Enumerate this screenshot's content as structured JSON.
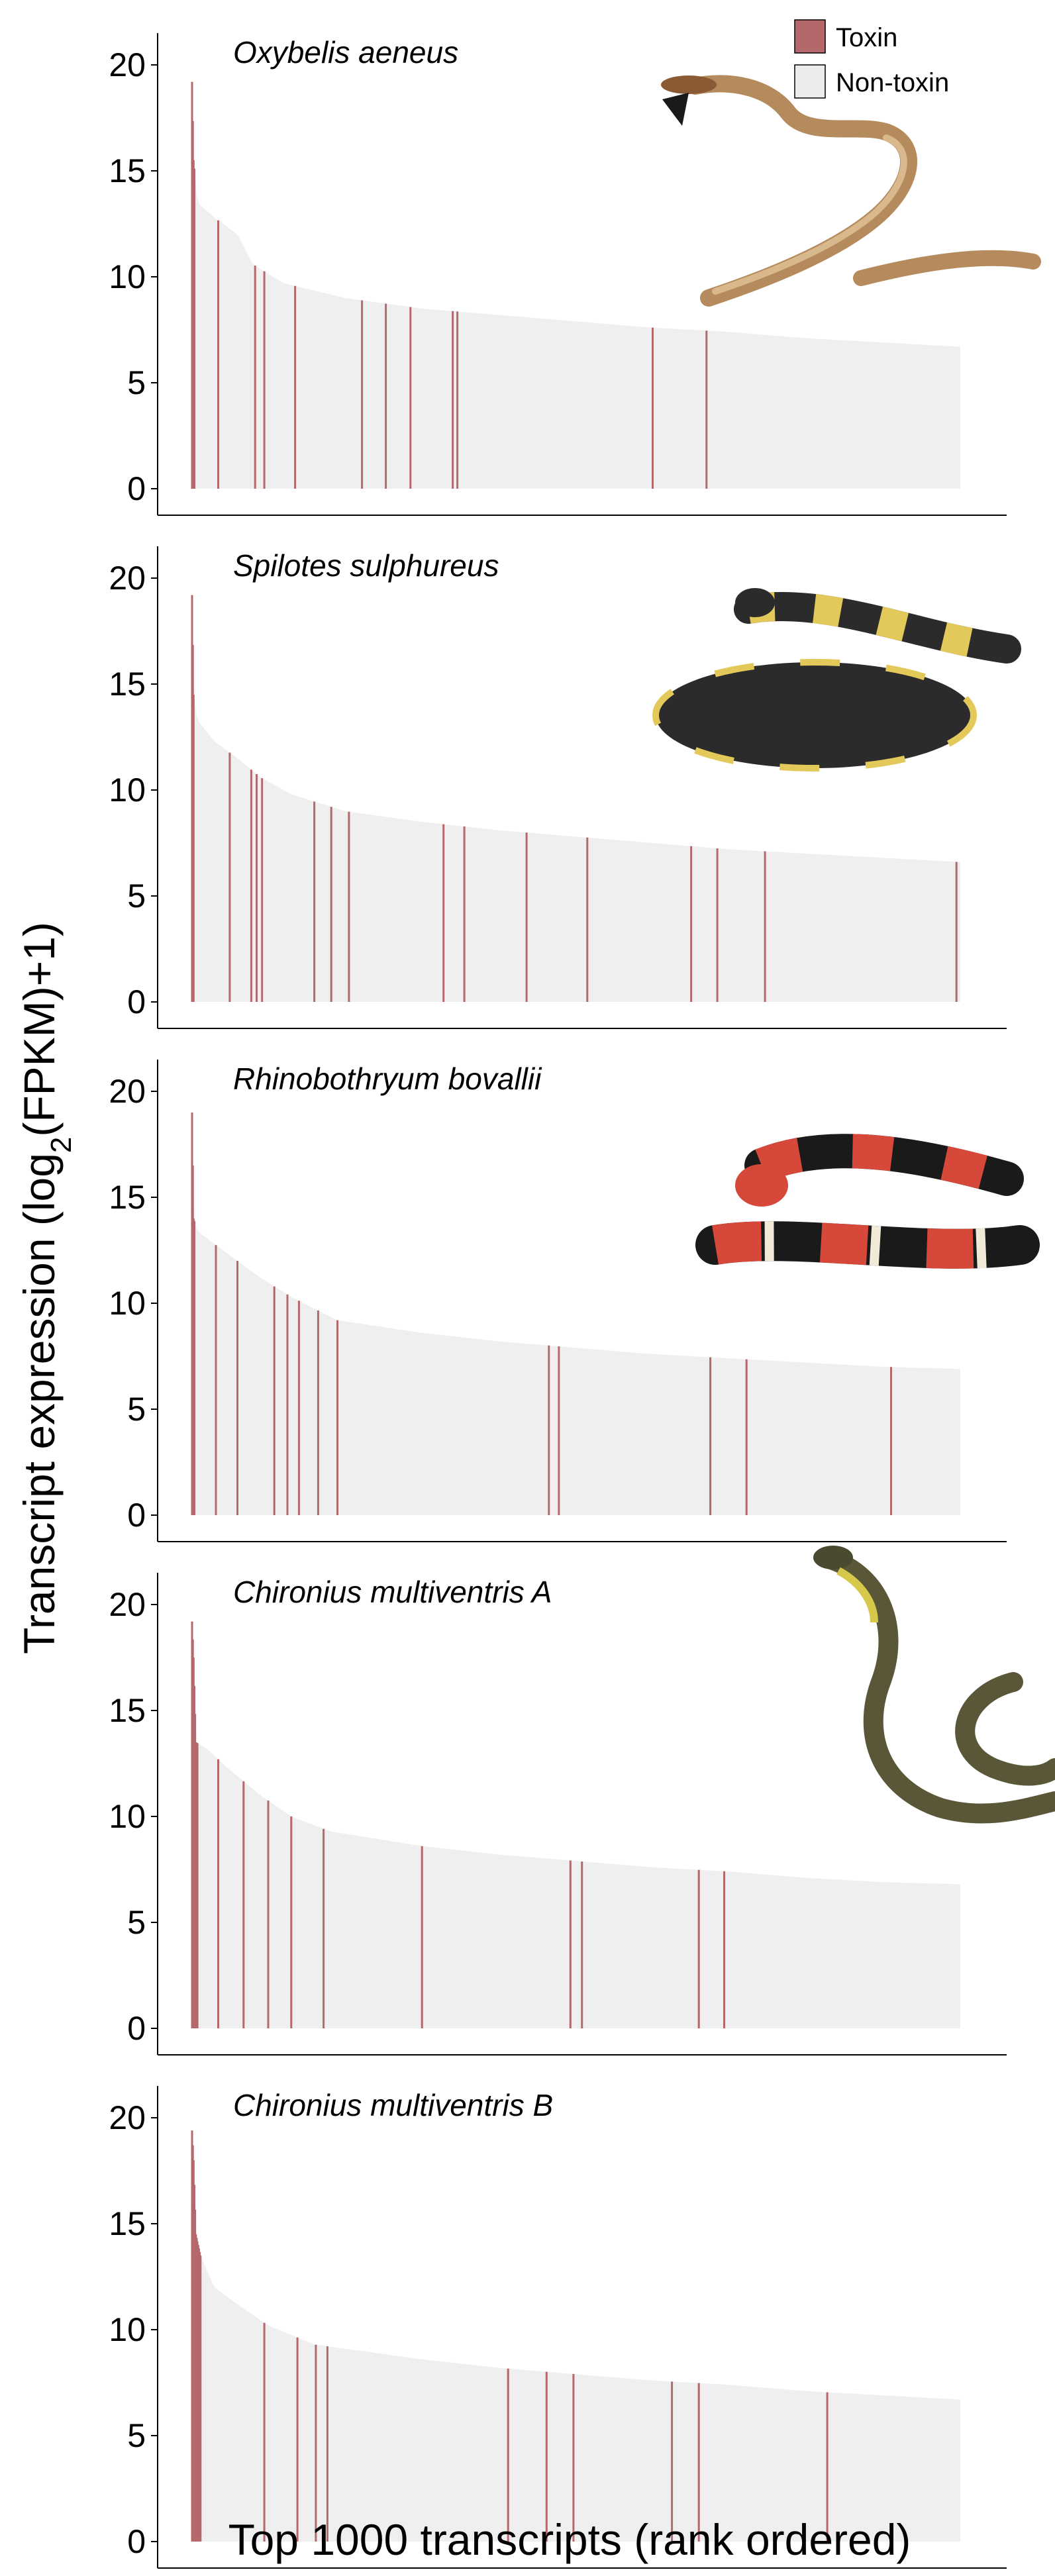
{
  "figure": {
    "ylabel_main": "Transcript expression (log",
    "ylabel_sub": "2",
    "ylabel_tail": "(FPKM)+1)",
    "xlabel": "Top 1000 transcripts (rank ordered)"
  },
  "legend": [
    {
      "label": "Toxin",
      "color": "#b5686b"
    },
    {
      "label": "Non-toxin",
      "color": "#ececec"
    }
  ],
  "colors": {
    "toxin": "#b5686b",
    "nontoxin": "#efefef",
    "axis": "#000000"
  },
  "chart_data": [
    {
      "type": "bar",
      "title": "Oxybelis aeneus",
      "photo_icon": "snake-photo-oxybelis",
      "x": [
        1,
        1000
      ],
      "ylim": [
        0,
        20
      ],
      "yticks": [
        "0",
        "5",
        "10",
        "15",
        "20"
      ],
      "curve": [
        [
          1,
          19.2
        ],
        [
          3,
          15.5
        ],
        [
          8,
          13.5
        ],
        [
          30,
          12.8
        ],
        [
          60,
          12.0
        ],
        [
          80,
          10.6
        ],
        [
          120,
          9.7
        ],
        [
          200,
          9.0
        ],
        [
          300,
          8.5
        ],
        [
          400,
          8.2
        ],
        [
          500,
          7.9
        ],
        [
          600,
          7.6
        ],
        [
          700,
          7.4
        ],
        [
          800,
          7.1
        ],
        [
          900,
          6.9
        ],
        [
          1000,
          6.7
        ]
      ],
      "toxin_ranks": [
        1,
        2,
        3,
        4,
        35,
        83,
        95,
        135,
        222,
        253,
        285,
        340,
        346,
        600,
        670
      ]
    },
    {
      "type": "bar",
      "title": "Spilotes sulphureus",
      "photo_icon": "snake-photo-spilotes",
      "x": [
        1,
        1000
      ],
      "ylim": [
        0,
        20
      ],
      "yticks": [
        "0",
        "5",
        "10",
        "15",
        "20"
      ],
      "curve": [
        [
          1,
          19.2
        ],
        [
          3,
          14.5
        ],
        [
          8,
          13.3
        ],
        [
          30,
          12.3
        ],
        [
          60,
          11.5
        ],
        [
          90,
          10.6
        ],
        [
          130,
          9.8
        ],
        [
          200,
          9.0
        ],
        [
          300,
          8.5
        ],
        [
          400,
          8.1
        ],
        [
          500,
          7.8
        ],
        [
          600,
          7.5
        ],
        [
          700,
          7.2
        ],
        [
          800,
          7.0
        ],
        [
          900,
          6.8
        ],
        [
          1000,
          6.6
        ]
      ],
      "toxin_ranks": [
        1,
        2,
        3,
        50,
        78,
        85,
        92,
        160,
        182,
        205,
        328,
        355,
        436,
        515,
        650,
        684,
        746,
        995
      ]
    },
    {
      "type": "bar",
      "title": "Rhinobothryum bovallii",
      "photo_icon": "snake-photo-rhinobothryum",
      "x": [
        1,
        1000
      ],
      "ylim": [
        0,
        20
      ],
      "yticks": [
        "0",
        "5",
        "10",
        "15",
        "20"
      ],
      "curve": [
        [
          1,
          19.0
        ],
        [
          3,
          14.0
        ],
        [
          8,
          13.4
        ],
        [
          30,
          12.8
        ],
        [
          60,
          12.0
        ],
        [
          90,
          11.2
        ],
        [
          130,
          10.3
        ],
        [
          190,
          9.2
        ],
        [
          300,
          8.6
        ],
        [
          400,
          8.2
        ],
        [
          500,
          7.9
        ],
        [
          600,
          7.6
        ],
        [
          700,
          7.4
        ],
        [
          800,
          7.2
        ],
        [
          900,
          7.0
        ],
        [
          1000,
          6.9
        ]
      ],
      "toxin_ranks": [
        1,
        2,
        3,
        4,
        32,
        60,
        108,
        125,
        140,
        165,
        190,
        465,
        478,
        675,
        722,
        910
      ]
    },
    {
      "type": "bar",
      "title": "Chironius multiventris A",
      "photo_icon": "snake-photo-chironius",
      "x": [
        1,
        1000
      ],
      "ylim": [
        0,
        20
      ],
      "yticks": [
        "0",
        "5",
        "10",
        "15",
        "20"
      ],
      "curve": [
        [
          1,
          19.2
        ],
        [
          3,
          17.5
        ],
        [
          6,
          13.5
        ],
        [
          20,
          13.2
        ],
        [
          50,
          12.2
        ],
        [
          90,
          11.0
        ],
        [
          130,
          10.0
        ],
        [
          180,
          9.3
        ],
        [
          300,
          8.6
        ],
        [
          400,
          8.2
        ],
        [
          500,
          7.9
        ],
        [
          600,
          7.6
        ],
        [
          700,
          7.4
        ],
        [
          800,
          7.1
        ],
        [
          900,
          6.9
        ],
        [
          1000,
          6.8
        ]
      ],
      "toxin_ranks": [
        1,
        2,
        3,
        4,
        5,
        6,
        7,
        8,
        35,
        68,
        100,
        130,
        172,
        300,
        493,
        508,
        660,
        693
      ]
    },
    {
      "type": "bar",
      "title": "Chironius multiventris B",
      "photo_icon": "snake-photo-none",
      "x": [
        1,
        1000
      ],
      "ylim": [
        0,
        20
      ],
      "yticks": [
        "0",
        "5",
        "10",
        "15",
        "20"
      ],
      "curve": [
        [
          1,
          19.4
        ],
        [
          3,
          18.0
        ],
        [
          6,
          14.5
        ],
        [
          12,
          13.5
        ],
        [
          30,
          12.0
        ],
        [
          60,
          11.2
        ],
        [
          100,
          10.2
        ],
        [
          160,
          9.3
        ],
        [
          300,
          8.6
        ],
        [
          400,
          8.2
        ],
        [
          500,
          7.9
        ],
        [
          600,
          7.6
        ],
        [
          700,
          7.4
        ],
        [
          800,
          7.1
        ],
        [
          900,
          6.9
        ],
        [
          1000,
          6.7
        ]
      ],
      "toxin_ranks": [
        1,
        2,
        3,
        4,
        5,
        6,
        7,
        8,
        9,
        10,
        11,
        12,
        95,
        138,
        162,
        177,
        412,
        462,
        497,
        625,
        660,
        827
      ]
    }
  ]
}
